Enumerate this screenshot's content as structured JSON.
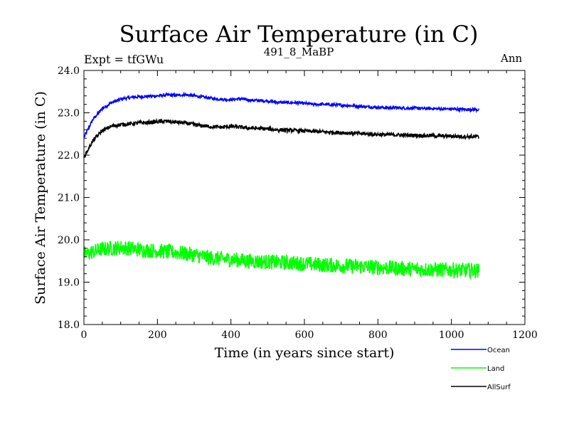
{
  "header": {
    "title": "Surface Air Temperature (in C)",
    "subtitle": "491_8_MaBP",
    "expt": "Expt = tfGWu",
    "period": "Ann"
  },
  "chart_data": {
    "type": "line",
    "title": "Surface Air Temperature (in C)",
    "subtitle": "491_8_MaBP",
    "xlabel": "Time (in years since start)",
    "ylabel": "Surface Air Temperature (in C)",
    "xlim": [
      0,
      1200
    ],
    "ylim": [
      18.0,
      24.0
    ],
    "xticks": [
      0,
      200,
      400,
      600,
      800,
      1000,
      1200
    ],
    "yticks": [
      18.0,
      19.0,
      20.0,
      21.0,
      22.0,
      23.0,
      24.0
    ],
    "x_tick_labels": [
      "0",
      "200",
      "400",
      "600",
      "800",
      "1000",
      "1200"
    ],
    "y_tick_labels": [
      "18.0",
      "19.0",
      "20.0",
      "21.0",
      "22.0",
      "23.0",
      "24.0"
    ],
    "legend_position": "bottom-right",
    "x_start": 0,
    "x_step": 25,
    "series": [
      {
        "name": "Ocean",
        "color": "#0000ff",
        "values": [
          22.42,
          22.85,
          23.1,
          23.24,
          23.32,
          23.36,
          23.38,
          23.39,
          23.4,
          23.42,
          23.41,
          23.43,
          23.4,
          23.37,
          23.34,
          23.32,
          23.31,
          23.33,
          23.3,
          23.29,
          23.28,
          23.25,
          23.24,
          23.24,
          23.22,
          23.2,
          23.2,
          23.19,
          23.18,
          23.17,
          23.15,
          23.14,
          23.13,
          23.12,
          23.12,
          23.11,
          23.11,
          23.1,
          23.1,
          23.09,
          23.09,
          23.08,
          23.08,
          23.07
        ]
      },
      {
        "name": "Land",
        "color": "#00ff00",
        "values": [
          19.65,
          19.72,
          19.78,
          19.8,
          19.82,
          19.8,
          19.77,
          19.75,
          19.74,
          19.72,
          19.7,
          19.68,
          19.64,
          19.6,
          19.57,
          19.55,
          19.54,
          19.52,
          19.5,
          19.49,
          19.48,
          19.47,
          19.46,
          19.45,
          19.44,
          19.42,
          19.41,
          19.4,
          19.39,
          19.38,
          19.37,
          19.36,
          19.35,
          19.34,
          19.33,
          19.32,
          19.31,
          19.3,
          19.3,
          19.29,
          19.29,
          19.28,
          19.28,
          19.27
        ]
      },
      {
        "name": "AllSurf",
        "color": "#000000",
        "values": [
          21.95,
          22.35,
          22.58,
          22.68,
          22.72,
          22.74,
          22.76,
          22.77,
          22.79,
          22.8,
          22.78,
          22.76,
          22.72,
          22.69,
          22.67,
          22.66,
          22.68,
          22.66,
          22.64,
          22.63,
          22.62,
          22.6,
          22.59,
          22.58,
          22.57,
          22.56,
          22.55,
          22.54,
          22.53,
          22.52,
          22.51,
          22.5,
          22.49,
          22.48,
          22.48,
          22.47,
          22.47,
          22.46,
          22.46,
          22.45,
          22.45,
          22.44,
          22.44,
          22.43
        ]
      }
    ]
  }
}
